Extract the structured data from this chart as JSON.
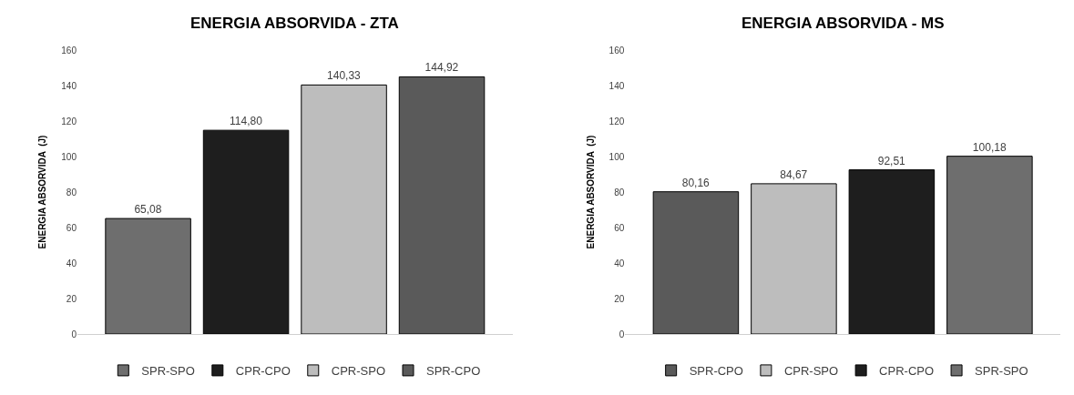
{
  "chart_data": [
    {
      "type": "bar",
      "title": "ENERGIA ABSORVIDA - ZTA",
      "ylabel": "ENERGIA ABSORVIDA  (J)",
      "categories": [
        null
      ],
      "ylim": [
        0,
        160
      ],
      "yticks": [
        0,
        20,
        40,
        60,
        80,
        100,
        120,
        140,
        160
      ],
      "legend": "bottom",
      "series": [
        {
          "name": "SPR-SPO",
          "color": "#6e6e6e",
          "values": [
            65.08
          ],
          "value_labels": [
            "65,08"
          ]
        },
        {
          "name": "CPR-CPO",
          "color": "#1e1e1e",
          "values": [
            114.8
          ],
          "value_labels": [
            "114,80"
          ]
        },
        {
          "name": "CPR-SPO",
          "color": "#bdbdbd",
          "values": [
            140.33
          ],
          "value_labels": [
            "140,33"
          ]
        },
        {
          "name": "SPR-CPO",
          "color": "#5a5a5a",
          "values": [
            144.92
          ],
          "value_labels": [
            "144,92"
          ]
        }
      ]
    },
    {
      "type": "bar",
      "title": "ENERGIA ABSORVIDA - MS",
      "ylabel": "ENERGIA ABSORVIDA  (J)",
      "categories": [
        null
      ],
      "ylim": [
        0,
        160
      ],
      "yticks": [
        0,
        20,
        40,
        60,
        80,
        100,
        120,
        140,
        160
      ],
      "legend": "bottom",
      "series": [
        {
          "name": "SPR-CPO",
          "color": "#5a5a5a",
          "values": [
            80.16
          ],
          "value_labels": [
            "80,16"
          ]
        },
        {
          "name": "CPR-SPO",
          "color": "#bdbdbd",
          "values": [
            84.67
          ],
          "value_labels": [
            "84,67"
          ]
        },
        {
          "name": "CPR-CPO",
          "color": "#1e1e1e",
          "values": [
            92.51
          ],
          "value_labels": [
            "92,51"
          ]
        },
        {
          "name": "SPR-SPO",
          "color": "#6e6e6e",
          "values": [
            100.18
          ],
          "value_labels": [
            "100,18"
          ]
        }
      ]
    }
  ]
}
